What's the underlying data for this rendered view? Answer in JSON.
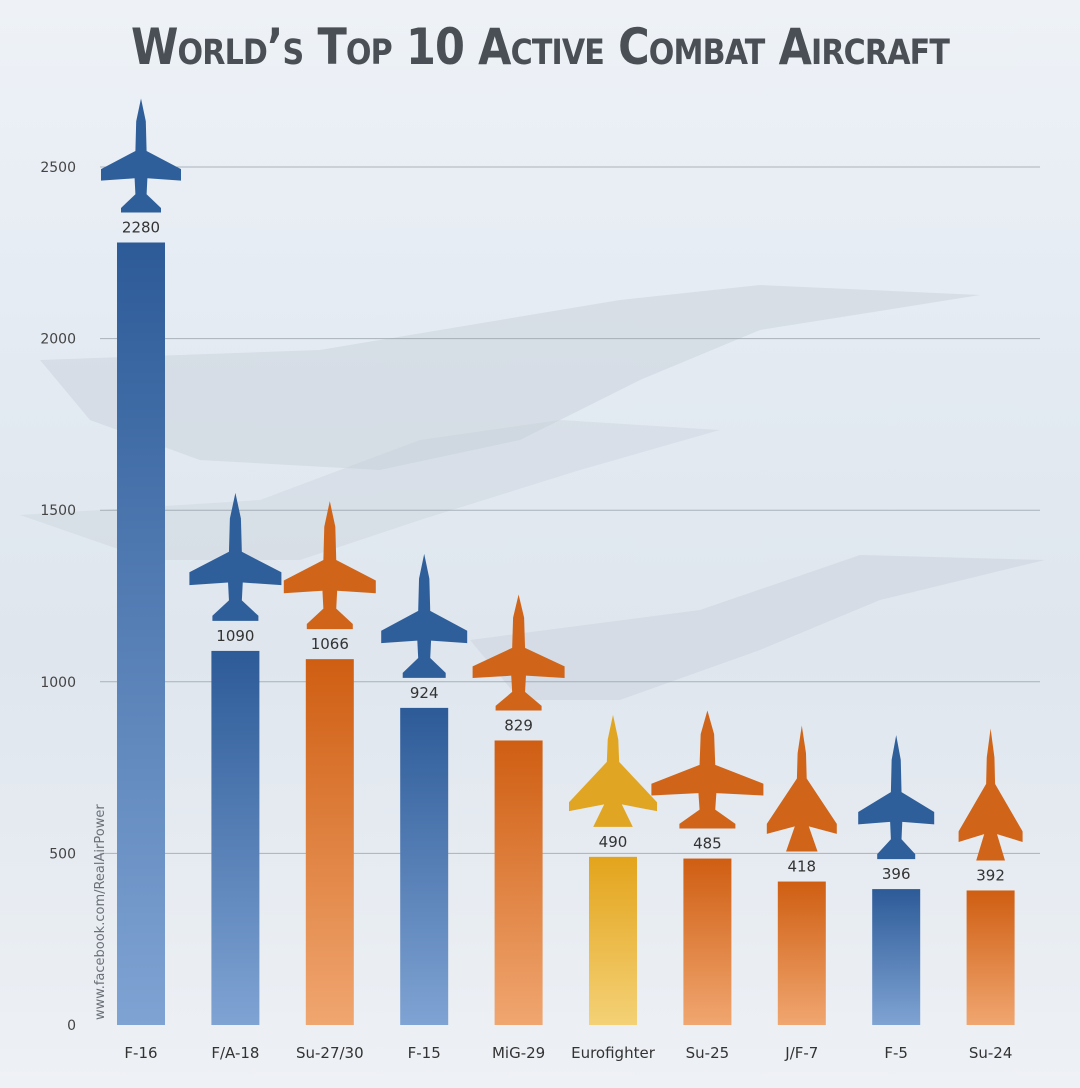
{
  "title": "World’s Top 10 Active Combat Aircraft",
  "watermark": "www.facebook.com/RealAirPower",
  "colors": {
    "blue": "#2f5f9a",
    "orange": "#d0651a",
    "yellow": "#e0a623",
    "gridline": "#9aa3ad",
    "text": "#333333"
  },
  "chart_data": {
    "type": "bar",
    "title": "World’s Top 10 Active Combat Aircraft",
    "xlabel": "",
    "ylabel": "",
    "ylim": [
      0,
      2500
    ],
    "yticks": [
      0,
      500,
      1000,
      1500,
      2000,
      2500
    ],
    "grid": true,
    "categories": [
      "F-16",
      "F/A-18",
      "Su-27/30",
      "F-15",
      "MiG-29",
      "Eurofighter",
      "Su-25",
      "J/F-7",
      "F-5",
      "Su-24"
    ],
    "values": [
      2280,
      1090,
      1066,
      924,
      829,
      490,
      485,
      418,
      396,
      392
    ],
    "bar_colors": [
      "blue",
      "blue",
      "orange",
      "blue",
      "orange",
      "yellow",
      "orange",
      "orange",
      "blue",
      "orange"
    ],
    "icons": [
      "f16-jet-icon",
      "fa18-jet-icon",
      "su27-jet-icon",
      "f15-jet-icon",
      "mig29-jet-icon",
      "eurofighter-jet-icon",
      "su25-jet-icon",
      "jf7-jet-icon",
      "f5-jet-icon",
      "su24-jet-icon"
    ]
  }
}
